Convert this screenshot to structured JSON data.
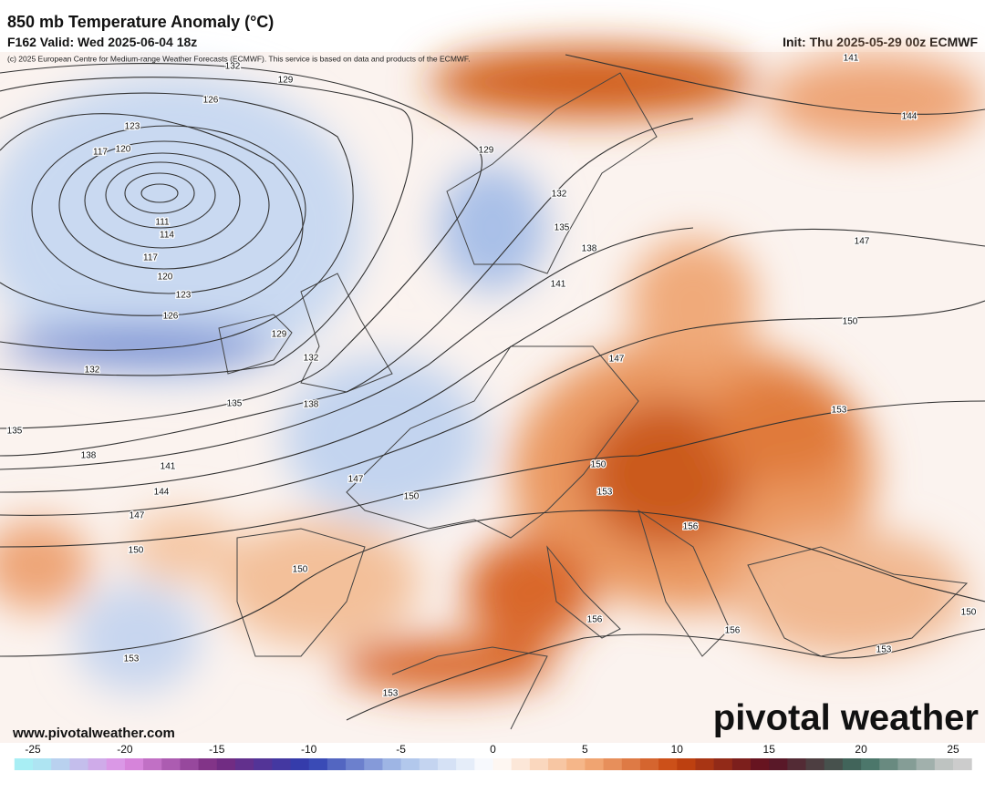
{
  "header": {
    "title": "850 mb Temperature Anomaly (°C)",
    "valid": "F162 Valid: Wed 2025-06-04 18z",
    "init": "Init: Thu 2025-05-29 00z ECMWF",
    "copyright": "(c) 2025 European Centre for Medium-range Weather Forecasts (ECMWF). This service is based on data and products of the ECMWF."
  },
  "contours": {
    "labels": [
      132,
      129,
      126,
      123,
      117,
      120,
      111,
      114,
      117,
      120,
      123,
      126,
      129,
      132,
      132,
      135,
      138,
      135,
      138,
      141,
      144,
      147,
      150,
      129,
      132,
      135,
      138,
      141,
      147,
      147,
      150,
      150,
      153,
      156,
      150,
      153,
      153,
      156,
      156,
      153,
      150,
      153,
      150,
      147,
      144,
      141
    ]
  },
  "footer": {
    "website": "www.pivotalweather.com",
    "logo": "pivotal weather"
  },
  "colorbar": {
    "range": [
      -26,
      26
    ],
    "ticks": [
      -25,
      -20,
      -15,
      -10,
      -5,
      0,
      5,
      10,
      15,
      20,
      25
    ],
    "stops": [
      "#a8eef4",
      "#e08ee4",
      "#782a7e",
      "#2e3eb0",
      "#aac2ea",
      "#ffffff",
      "#f4ae7c",
      "#c8460e",
      "#5c0e22",
      "#3e6e60",
      "#cccccc"
    ]
  }
}
